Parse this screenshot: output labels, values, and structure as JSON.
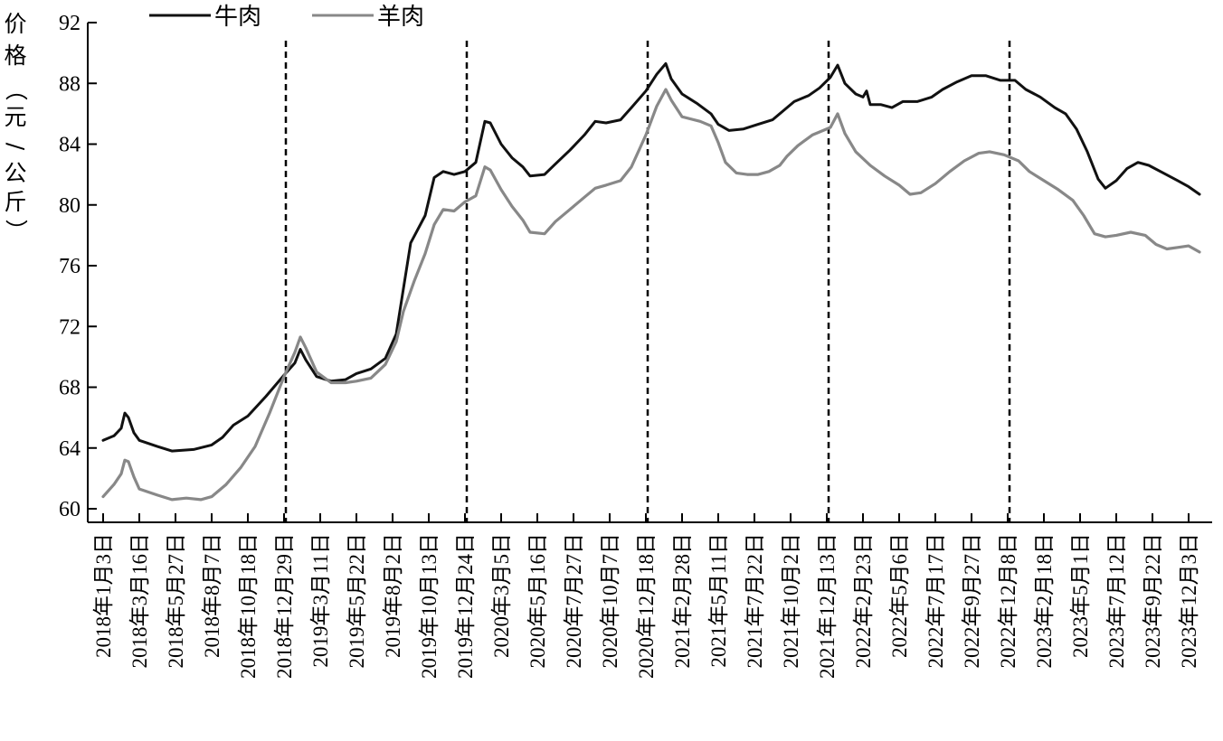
{
  "chart_data": {
    "type": "line",
    "ylabel": "价格（元/公斤）",
    "ylim": [
      60,
      92
    ],
    "yticks": [
      60,
      64,
      68,
      72,
      76,
      80,
      84,
      88,
      92
    ],
    "categories": [
      "2018年1月3日",
      "2018年3月16日",
      "2018年5月27日",
      "2018年8月7日",
      "2018年10月18日",
      "2018年12月29日",
      "2019年3月11日",
      "2019年5月22日",
      "2019年8月2日",
      "2019年10月13日",
      "2019年12月24日",
      "2020年3月5日",
      "2020年5月16日",
      "2020年7月27日",
      "2020年10月7日",
      "2020年12月18日",
      "2021年2月28日",
      "2021年5月11日",
      "2021年7月22日",
      "2021年10月2日",
      "2021年12月13日",
      "2022年2月23日",
      "2022年5月6日",
      "2022年7月17日",
      "2022年9月27日",
      "2022年12月8日",
      "2023年2月18日",
      "2023年5月1日",
      "2023年7月12日",
      "2023年9月22日",
      "2023年12月3日"
    ],
    "legend_position": "top-left",
    "grid": false,
    "dividers_after_category": [
      5,
      10,
      15,
      20,
      25
    ],
    "series": [
      {
        "name": "牛肉",
        "color": "#111111",
        "points": [
          [
            0,
            64.5
          ],
          [
            0.3,
            64.8
          ],
          [
            0.5,
            65.3
          ],
          [
            0.6,
            66.3
          ],
          [
            0.7,
            66.0
          ],
          [
            0.85,
            65.0
          ],
          [
            1.0,
            64.5
          ],
          [
            1.5,
            64.1
          ],
          [
            1.9,
            63.8
          ],
          [
            2.5,
            63.9
          ],
          [
            3.0,
            64.2
          ],
          [
            3.3,
            64.7
          ],
          [
            3.6,
            65.5
          ],
          [
            4.0,
            66.1
          ],
          [
            4.5,
            67.4
          ],
          [
            5.0,
            68.8
          ],
          [
            5.3,
            69.6
          ],
          [
            5.45,
            70.5
          ],
          [
            5.6,
            69.8
          ],
          [
            5.9,
            68.7
          ],
          [
            6.3,
            68.4
          ],
          [
            6.7,
            68.5
          ],
          [
            7.0,
            68.9
          ],
          [
            7.4,
            69.2
          ],
          [
            7.8,
            69.9
          ],
          [
            8.1,
            71.5
          ],
          [
            8.3,
            74.5
          ],
          [
            8.5,
            77.5
          ],
          [
            8.9,
            79.3
          ],
          [
            9.15,
            81.8
          ],
          [
            9.4,
            82.2
          ],
          [
            9.7,
            82.0
          ],
          [
            10.0,
            82.2
          ],
          [
            10.3,
            82.8
          ],
          [
            10.55,
            85.5
          ],
          [
            10.7,
            85.4
          ],
          [
            11.0,
            84.0
          ],
          [
            11.3,
            83.1
          ],
          [
            11.6,
            82.5
          ],
          [
            11.8,
            81.9
          ],
          [
            12.2,
            82.0
          ],
          [
            12.5,
            82.7
          ],
          [
            12.9,
            83.6
          ],
          [
            13.3,
            84.6
          ],
          [
            13.6,
            85.5
          ],
          [
            13.9,
            85.4
          ],
          [
            14.3,
            85.6
          ],
          [
            14.6,
            86.4
          ],
          [
            15.0,
            87.5
          ],
          [
            15.3,
            88.6
          ],
          [
            15.55,
            89.3
          ],
          [
            15.7,
            88.3
          ],
          [
            16.0,
            87.3
          ],
          [
            16.4,
            86.7
          ],
          [
            16.8,
            86.0
          ],
          [
            17.0,
            85.3
          ],
          [
            17.3,
            84.9
          ],
          [
            17.7,
            85.0
          ],
          [
            18.1,
            85.3
          ],
          [
            18.5,
            85.6
          ],
          [
            18.8,
            86.2
          ],
          [
            19.1,
            86.8
          ],
          [
            19.5,
            87.2
          ],
          [
            19.8,
            87.7
          ],
          [
            20.1,
            88.4
          ],
          [
            20.3,
            89.2
          ],
          [
            20.5,
            88.0
          ],
          [
            20.8,
            87.3
          ],
          [
            21.0,
            87.1
          ],
          [
            21.1,
            87.5
          ],
          [
            21.2,
            86.6
          ],
          [
            21.5,
            86.6
          ],
          [
            21.8,
            86.4
          ],
          [
            22.1,
            86.8
          ],
          [
            22.5,
            86.8
          ],
          [
            22.9,
            87.1
          ],
          [
            23.2,
            87.6
          ],
          [
            23.6,
            88.1
          ],
          [
            24.0,
            88.5
          ],
          [
            24.4,
            88.5
          ],
          [
            24.8,
            88.2
          ],
          [
            25.2,
            88.2
          ],
          [
            25.5,
            87.6
          ],
          [
            25.9,
            87.1
          ],
          [
            26.3,
            86.4
          ],
          [
            26.6,
            86.0
          ],
          [
            26.9,
            85.0
          ],
          [
            27.2,
            83.5
          ],
          [
            27.5,
            81.7
          ],
          [
            27.7,
            81.1
          ],
          [
            28.0,
            81.6
          ],
          [
            28.3,
            82.4
          ],
          [
            28.6,
            82.8
          ],
          [
            28.9,
            82.6
          ],
          [
            29.3,
            82.1
          ],
          [
            29.7,
            81.6
          ],
          [
            30.0,
            81.2
          ],
          [
            30.3,
            80.7
          ]
        ]
      },
      {
        "name": "羊肉",
        "color": "#888888",
        "points": [
          [
            0,
            60.8
          ],
          [
            0.3,
            61.6
          ],
          [
            0.5,
            62.3
          ],
          [
            0.6,
            63.2
          ],
          [
            0.7,
            63.1
          ],
          [
            0.85,
            62.1
          ],
          [
            1.0,
            61.3
          ],
          [
            1.5,
            60.9
          ],
          [
            1.9,
            60.6
          ],
          [
            2.3,
            60.7
          ],
          [
            2.7,
            60.6
          ],
          [
            3.0,
            60.8
          ],
          [
            3.4,
            61.6
          ],
          [
            3.8,
            62.7
          ],
          [
            4.2,
            64.1
          ],
          [
            4.6,
            66.3
          ],
          [
            5.0,
            68.7
          ],
          [
            5.3,
            70.3
          ],
          [
            5.45,
            71.3
          ],
          [
            5.6,
            70.6
          ],
          [
            5.9,
            69.0
          ],
          [
            6.3,
            68.3
          ],
          [
            6.7,
            68.3
          ],
          [
            7.0,
            68.4
          ],
          [
            7.4,
            68.6
          ],
          [
            7.8,
            69.5
          ],
          [
            8.1,
            71.0
          ],
          [
            8.3,
            73.0
          ],
          [
            8.6,
            75.0
          ],
          [
            8.9,
            76.8
          ],
          [
            9.15,
            78.7
          ],
          [
            9.4,
            79.7
          ],
          [
            9.7,
            79.6
          ],
          [
            10.0,
            80.2
          ],
          [
            10.3,
            80.6
          ],
          [
            10.55,
            82.5
          ],
          [
            10.7,
            82.3
          ],
          [
            11.0,
            81.0
          ],
          [
            11.3,
            79.9
          ],
          [
            11.6,
            79.0
          ],
          [
            11.8,
            78.2
          ],
          [
            12.2,
            78.1
          ],
          [
            12.5,
            78.9
          ],
          [
            12.9,
            79.7
          ],
          [
            13.3,
            80.5
          ],
          [
            13.6,
            81.1
          ],
          [
            13.9,
            81.3
          ],
          [
            14.3,
            81.6
          ],
          [
            14.6,
            82.5
          ],
          [
            15.0,
            84.6
          ],
          [
            15.3,
            86.5
          ],
          [
            15.55,
            87.6
          ],
          [
            15.7,
            86.9
          ],
          [
            16.0,
            85.8
          ],
          [
            16.5,
            85.5
          ],
          [
            16.8,
            85.2
          ],
          [
            17.0,
            84.1
          ],
          [
            17.2,
            82.8
          ],
          [
            17.5,
            82.1
          ],
          [
            17.8,
            82.0
          ],
          [
            18.1,
            82.0
          ],
          [
            18.4,
            82.2
          ],
          [
            18.7,
            82.6
          ],
          [
            18.9,
            83.2
          ],
          [
            19.2,
            83.9
          ],
          [
            19.6,
            84.6
          ],
          [
            19.9,
            84.9
          ],
          [
            20.1,
            85.1
          ],
          [
            20.3,
            86.0
          ],
          [
            20.5,
            84.7
          ],
          [
            20.8,
            83.5
          ],
          [
            21.2,
            82.6
          ],
          [
            21.6,
            81.9
          ],
          [
            22.0,
            81.3
          ],
          [
            22.3,
            80.7
          ],
          [
            22.6,
            80.8
          ],
          [
            23.0,
            81.4
          ],
          [
            23.4,
            82.2
          ],
          [
            23.8,
            82.9
          ],
          [
            24.2,
            83.4
          ],
          [
            24.5,
            83.5
          ],
          [
            24.9,
            83.3
          ],
          [
            25.3,
            82.9
          ],
          [
            25.6,
            82.2
          ],
          [
            26.0,
            81.6
          ],
          [
            26.4,
            81.0
          ],
          [
            26.8,
            80.3
          ],
          [
            27.1,
            79.3
          ],
          [
            27.4,
            78.1
          ],
          [
            27.7,
            77.9
          ],
          [
            28.0,
            78.0
          ],
          [
            28.4,
            78.2
          ],
          [
            28.8,
            78.0
          ],
          [
            29.1,
            77.4
          ],
          [
            29.4,
            77.1
          ],
          [
            29.7,
            77.2
          ],
          [
            30.0,
            77.3
          ],
          [
            30.3,
            76.9
          ]
        ]
      }
    ]
  }
}
